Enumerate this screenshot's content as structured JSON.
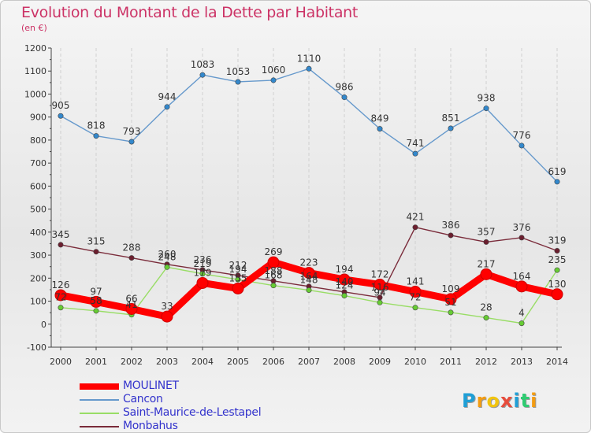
{
  "title": "Evolution du Montant de la Dette par Habitant",
  "unit_label": "(en €)",
  "chart_data": {
    "type": "line",
    "title": "Evolution du Montant de la Dette par Habitant",
    "ylabel": "(en €)",
    "xlabel": "",
    "ylim": [
      -100,
      1200
    ],
    "yticks": [
      -100,
      0,
      100,
      200,
      300,
      400,
      500,
      600,
      700,
      800,
      900,
      1000,
      1100,
      1200
    ],
    "categories": [
      "2000",
      "2001",
      "2002",
      "2003",
      "2004",
      "2005",
      "2006",
      "2007",
      "2008",
      "2009",
      "2010",
      "2011",
      "2012",
      "2013",
      "2014"
    ],
    "grid": "vertical",
    "legend_position": "bottom-left",
    "series": [
      {
        "name": "Cancon",
        "color": "#6699cc",
        "marker": "#3388cc",
        "values": [
          905,
          818,
          793,
          944,
          1083,
          1053,
          1060,
          1110,
          986,
          849,
          741,
          851,
          938,
          776,
          619
        ]
      },
      {
        "name": "Monbahus",
        "color": "#7a2b3a",
        "marker": "#6b1e2e",
        "values": [
          345,
          315,
          288,
          260,
          236,
          212,
          188,
          164,
          140,
          116,
          421,
          386,
          357,
          376,
          319
        ]
      },
      {
        "name": "Saint-Maurice-de-Lestapel",
        "color": "#99dd66",
        "marker": "#66cc33",
        "values": [
          72,
          58,
          41,
          248,
          219,
          194,
          168,
          148,
          124,
          94,
          72,
          51,
          28,
          4,
          235
        ]
      },
      {
        "name": "MOULINET",
        "color": "#ff0000",
        "marker": "#ff0000",
        "values": [
          126,
          97,
          66,
          33,
          179,
          155,
          269,
          223,
          194,
          172,
          141,
          109,
          217,
          164,
          130
        ]
      }
    ],
    "legend_order": [
      "MOULINET",
      "Cancon",
      "Saint-Maurice-de-Lestapel",
      "Monbahus"
    ]
  },
  "logo": {
    "letters": [
      "P",
      "r",
      "o",
      "x",
      "i",
      "t",
      "i"
    ],
    "colors": [
      "#1f9fd6",
      "#f39c12",
      "#f1c40f",
      "#e74c3c",
      "#1f9fd6",
      "#2ecc71",
      "#f39c12"
    ]
  }
}
